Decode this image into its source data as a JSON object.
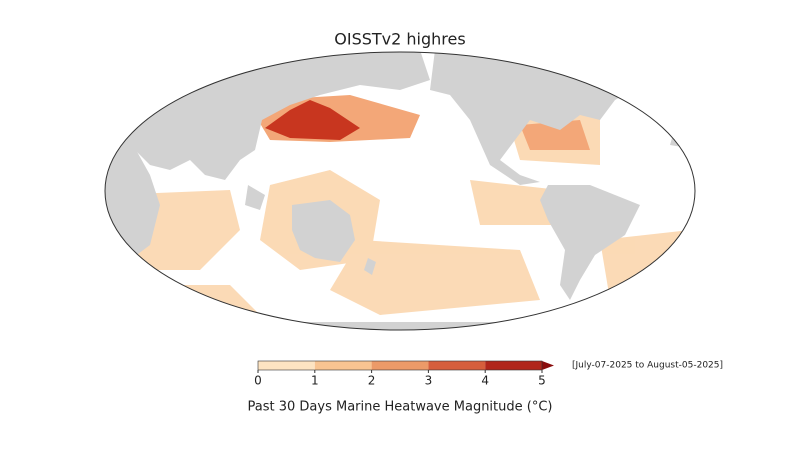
{
  "title": "OISSTv2 highres",
  "colorbar": {
    "label": "Past 30 Days Marine Heatwave Magnitude (°C)",
    "lim": [
      0,
      5
    ],
    "ticks": [
      0,
      1,
      2,
      3,
      4,
      5
    ],
    "colors": [
      "#fde4c2",
      "#f8c491",
      "#ec9a68",
      "#d65e3c",
      "#b0261b"
    ],
    "extend_color": "#8a0c0c"
  },
  "date_range": "[July-07-2025 to August-05-2025]"
}
